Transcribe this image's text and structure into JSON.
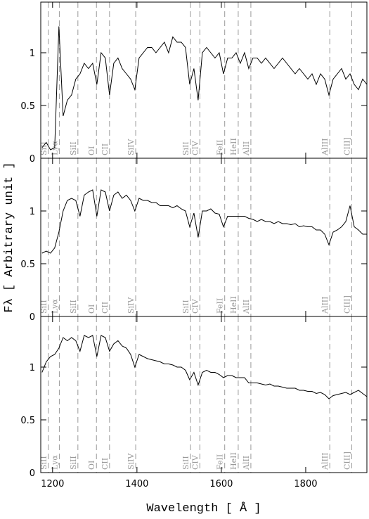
{
  "chart_data": [
    {
      "type": "line",
      "color": "#000000",
      "x": [
        1175,
        1185,
        1195,
        1205,
        1215,
        1225,
        1235,
        1245,
        1255,
        1265,
        1275,
        1285,
        1295,
        1305,
        1315,
        1325,
        1335,
        1345,
        1355,
        1365,
        1375,
        1385,
        1395,
        1405,
        1415,
        1425,
        1435,
        1445,
        1455,
        1465,
        1475,
        1485,
        1495,
        1505,
        1515,
        1525,
        1535,
        1545,
        1555,
        1565,
        1575,
        1585,
        1595,
        1605,
        1615,
        1625,
        1635,
        1645,
        1655,
        1665,
        1675,
        1685,
        1695,
        1705,
        1715,
        1725,
        1735,
        1745,
        1755,
        1765,
        1775,
        1785,
        1795,
        1805,
        1815,
        1825,
        1835,
        1845,
        1855,
        1865,
        1875,
        1885,
        1895,
        1905,
        1915,
        1925,
        1935,
        1945
      ],
      "values": [
        0.1,
        0.15,
        0.08,
        0.1,
        1.25,
        0.4,
        0.55,
        0.6,
        0.75,
        0.8,
        0.9,
        0.85,
        0.9,
        0.7,
        1.0,
        0.95,
        0.6,
        0.9,
        0.95,
        0.85,
        0.8,
        0.75,
        0.65,
        0.95,
        1.0,
        1.05,
        1.05,
        1.0,
        1.05,
        1.1,
        1.0,
        1.15,
        1.1,
        1.1,
        1.05,
        0.7,
        0.85,
        0.55,
        1.0,
        1.05,
        1.0,
        0.95,
        1.0,
        0.8,
        0.95,
        0.95,
        1.0,
        0.9,
        1.0,
        0.85,
        0.95,
        0.95,
        0.9,
        0.95,
        0.9,
        0.85,
        0.9,
        0.95,
        0.9,
        0.85,
        0.8,
        0.85,
        0.8,
        0.75,
        0.8,
        0.7,
        0.8,
        0.75,
        0.6,
        0.75,
        0.8,
        0.85,
        0.75,
        0.8,
        0.7,
        0.65,
        0.75,
        0.7
      ],
      "xlim": [
        1172,
        1945
      ],
      "ylim": [
        0,
        1.48
      ],
      "yticks": [
        0,
        0.5,
        1
      ],
      "xticks": [
        1200,
        1400,
        1600,
        1800
      ],
      "lines": [
        {
          "label": "SiII",
          "wavelength": 1190
        },
        {
          "label": "Lyα",
          "wavelength": 1216
        },
        {
          "label": "SiII",
          "wavelength": 1260
        },
        {
          "label": "OI",
          "wavelength": 1304
        },
        {
          "label": "CII",
          "wavelength": 1335
        },
        {
          "label": "SiIV",
          "wavelength": 1397
        },
        {
          "label": "SiII",
          "wavelength": 1527
        },
        {
          "label": "CIV",
          "wavelength": 1549
        },
        {
          "label": "FeII",
          "wavelength": 1608
        },
        {
          "label": "HeII",
          "wavelength": 1640
        },
        {
          "label": "AlII",
          "wavelength": 1670
        },
        {
          "label": "AlIII",
          "wavelength": 1857
        },
        {
          "label": "CIII]",
          "wavelength": 1909
        }
      ]
    },
    {
      "type": "line",
      "color": "#000000",
      "ylabel": "Fλ [ Arbitrary unit ]",
      "x": [
        1175,
        1185,
        1195,
        1205,
        1215,
        1225,
        1235,
        1245,
        1255,
        1265,
        1275,
        1285,
        1295,
        1305,
        1315,
        1325,
        1335,
        1345,
        1355,
        1365,
        1375,
        1385,
        1395,
        1405,
        1415,
        1425,
        1435,
        1445,
        1455,
        1465,
        1475,
        1485,
        1495,
        1505,
        1515,
        1525,
        1535,
        1545,
        1555,
        1565,
        1575,
        1585,
        1595,
        1605,
        1615,
        1625,
        1635,
        1645,
        1655,
        1665,
        1675,
        1685,
        1695,
        1705,
        1715,
        1725,
        1735,
        1745,
        1755,
        1765,
        1775,
        1785,
        1795,
        1805,
        1815,
        1825,
        1835,
        1845,
        1855,
        1865,
        1875,
        1885,
        1895,
        1905,
        1915,
        1925,
        1935,
        1945
      ],
      "values": [
        0.6,
        0.62,
        0.6,
        0.65,
        0.8,
        1.0,
        1.1,
        1.12,
        1.1,
        0.95,
        1.15,
        1.18,
        1.2,
        0.95,
        1.2,
        1.18,
        1.0,
        1.15,
        1.18,
        1.12,
        1.15,
        1.1,
        1.0,
        1.12,
        1.1,
        1.1,
        1.08,
        1.08,
        1.05,
        1.05,
        1.05,
        1.03,
        1.05,
        1.02,
        1.0,
        0.85,
        0.98,
        0.75,
        1.0,
        1.0,
        1.02,
        0.98,
        0.97,
        0.85,
        0.95,
        0.95,
        0.95,
        0.95,
        0.95,
        0.93,
        0.92,
        0.9,
        0.92,
        0.9,
        0.9,
        0.88,
        0.9,
        0.88,
        0.88,
        0.87,
        0.88,
        0.85,
        0.86,
        0.85,
        0.85,
        0.82,
        0.82,
        0.78,
        0.68,
        0.8,
        0.82,
        0.85,
        0.9,
        1.05,
        0.85,
        0.82,
        0.78,
        0.78
      ],
      "xlim": [
        1172,
        1945
      ],
      "ylim": [
        0,
        1.5
      ],
      "yticks": [
        0,
        0.5,
        1
      ],
      "xticks": [
        1200,
        1400,
        1600,
        1800
      ],
      "lines": [
        {
          "label": "SiII",
          "wavelength": 1190
        },
        {
          "label": "Lyα",
          "wavelength": 1216
        },
        {
          "label": "SiII",
          "wavelength": 1260
        },
        {
          "label": "OI",
          "wavelength": 1304
        },
        {
          "label": "CII",
          "wavelength": 1335
        },
        {
          "label": "SiIV",
          "wavelength": 1397
        },
        {
          "label": "SiII",
          "wavelength": 1527
        },
        {
          "label": "CIV",
          "wavelength": 1549
        },
        {
          "label": "FeII",
          "wavelength": 1608
        },
        {
          "label": "HeII",
          "wavelength": 1640
        },
        {
          "label": "AlII",
          "wavelength": 1670
        },
        {
          "label": "AlIII",
          "wavelength": 1857
        },
        {
          "label": "CIII]",
          "wavelength": 1909
        }
      ]
    },
    {
      "type": "line",
      "color": "#000000",
      "xlabel": "Wavelength [ Å ]",
      "x": [
        1175,
        1185,
        1195,
        1205,
        1215,
        1225,
        1235,
        1245,
        1255,
        1265,
        1275,
        1285,
        1295,
        1305,
        1315,
        1325,
        1335,
        1345,
        1355,
        1365,
        1375,
        1385,
        1395,
        1405,
        1415,
        1425,
        1435,
        1445,
        1455,
        1465,
        1475,
        1485,
        1495,
        1505,
        1515,
        1525,
        1535,
        1545,
        1555,
        1565,
        1575,
        1585,
        1595,
        1605,
        1615,
        1625,
        1635,
        1645,
        1655,
        1665,
        1675,
        1685,
        1695,
        1705,
        1715,
        1725,
        1735,
        1745,
        1755,
        1765,
        1775,
        1785,
        1795,
        1805,
        1815,
        1825,
        1835,
        1845,
        1855,
        1865,
        1875,
        1885,
        1895,
        1905,
        1915,
        1925,
        1935,
        1945
      ],
      "values": [
        0.95,
        1.05,
        1.1,
        1.12,
        1.18,
        1.28,
        1.25,
        1.28,
        1.25,
        1.15,
        1.3,
        1.28,
        1.3,
        1.1,
        1.3,
        1.28,
        1.15,
        1.22,
        1.25,
        1.2,
        1.18,
        1.12,
        1.0,
        1.12,
        1.1,
        1.08,
        1.07,
        1.06,
        1.05,
        1.03,
        1.03,
        1.02,
        1.0,
        1.0,
        0.97,
        0.88,
        0.95,
        0.83,
        0.95,
        0.97,
        0.95,
        0.95,
        0.93,
        0.9,
        0.92,
        0.92,
        0.9,
        0.9,
        0.9,
        0.85,
        0.85,
        0.85,
        0.84,
        0.83,
        0.84,
        0.82,
        0.82,
        0.81,
        0.8,
        0.8,
        0.8,
        0.78,
        0.78,
        0.77,
        0.77,
        0.75,
        0.76,
        0.74,
        0.7,
        0.73,
        0.74,
        0.75,
        0.76,
        0.74,
        0.76,
        0.78,
        0.75,
        0.72
      ],
      "xlim": [
        1172,
        1945
      ],
      "ylim": [
        0,
        1.48
      ],
      "yticks": [
        0,
        0.5,
        1
      ],
      "xticks": [
        1200,
        1400,
        1600,
        1800
      ],
      "lines": [
        {
          "label": "SiII",
          "wavelength": 1190
        },
        {
          "label": "Lyα",
          "wavelength": 1216
        },
        {
          "label": "SiII",
          "wavelength": 1260
        },
        {
          "label": "OI",
          "wavelength": 1304
        },
        {
          "label": "CII",
          "wavelength": 1335
        },
        {
          "label": "SiIV",
          "wavelength": 1397
        },
        {
          "label": "SiII",
          "wavelength": 1527
        },
        {
          "label": "CIV",
          "wavelength": 1549
        },
        {
          "label": "FeII",
          "wavelength": 1608
        },
        {
          "label": "HeII",
          "wavelength": 1640
        },
        {
          "label": "AlII",
          "wavelength": 1670
        },
        {
          "label": "AlIII",
          "wavelength": 1857
        },
        {
          "label": "CIII]",
          "wavelength": 1909
        }
      ]
    }
  ]
}
